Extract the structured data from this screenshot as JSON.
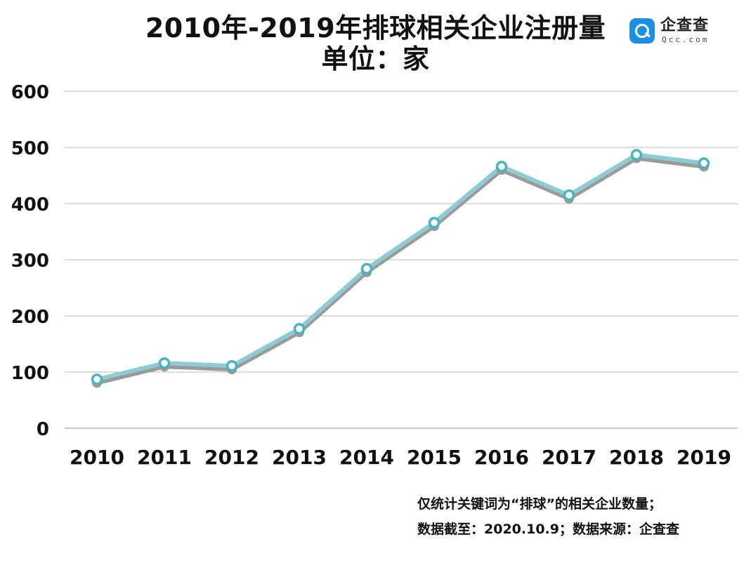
{
  "header": {
    "title": "2010年-2019年排球相关企业注册量",
    "subtitle": "单位：家"
  },
  "brand": {
    "icon": "qcc-logo-icon",
    "name": "企查查",
    "domain": "Qcc.com",
    "color": "#1d8fe3"
  },
  "notes": [
    "仅统计关键词为“排球”的相关企业数量；",
    "数据截至：2020.10.9；数据来源：企查查"
  ],
  "colors": {
    "line": "#8ecbd3",
    "shadow": "#9a9a9a",
    "marker": "#4bb3bf",
    "grid": "#b9b9b9"
  },
  "chart_data": {
    "type": "line",
    "title": "2010年-2019年排球相关企业注册量",
    "unit": "单位：家",
    "categories": [
      "2010",
      "2011",
      "2012",
      "2013",
      "2014",
      "2015",
      "2016",
      "2017",
      "2018",
      "2019"
    ],
    "series": [
      {
        "values": [
          87,
          116,
          111,
          177,
          284,
          366,
          466,
          415,
          487,
          472
        ]
      }
    ],
    "ylim": [
      0,
      600
    ],
    "yticks": [
      0,
      100,
      200,
      300,
      400,
      500,
      600
    ],
    "grid": true,
    "legend": "none"
  }
}
